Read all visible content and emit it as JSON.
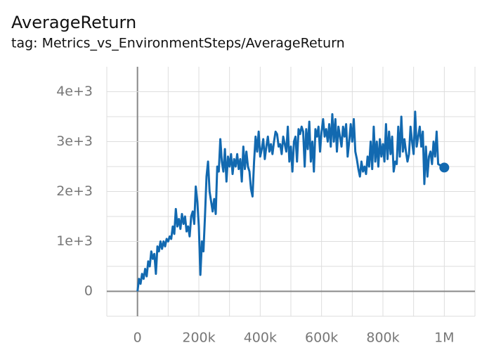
{
  "chart_data": {
    "type": "line",
    "title": "AverageReturn",
    "subtitle": "tag: Metrics_vs_EnvironmentSteps/AverageReturn",
    "color": "#1269b0",
    "grid": true,
    "xlim": [
      -100000,
      1100000
    ],
    "ylim": [
      -500,
      4500
    ],
    "xticks": [
      0,
      {
        "value": 200000,
        "label": "200k"
      },
      {
        "value": 400000,
        "label": "400k"
      },
      {
        "value": 600000,
        "label": "600k"
      },
      {
        "value": 800000,
        "label": "800k"
      },
      {
        "value": 1000000,
        "label": "1M"
      }
    ],
    "yticks": [
      0,
      {
        "value": 1000,
        "label": "1e+3"
      },
      {
        "value": 2000,
        "label": "2e+3"
      },
      {
        "value": 3000,
        "label": "3e+3"
      },
      {
        "value": 4000,
        "label": "4e+3"
      }
    ],
    "xminorticks": [
      -100000,
      100000,
      300000,
      500000,
      700000,
      900000,
      1100000
    ],
    "yminorticks": [
      -500,
      500,
      1500,
      2500,
      3500
    ],
    "x": [
      0,
      5000,
      10000,
      15000,
      20000,
      25000,
      30000,
      35000,
      40000,
      45000,
      50000,
      55000,
      60000,
      65000,
      70000,
      75000,
      80000,
      85000,
      90000,
      95000,
      100000,
      105000,
      110000,
      115000,
      120000,
      125000,
      130000,
      135000,
      140000,
      145000,
      150000,
      155000,
      160000,
      165000,
      170000,
      175000,
      180000,
      185000,
      190000,
      195000,
      200000,
      205000,
      210000,
      215000,
      220000,
      225000,
      230000,
      235000,
      240000,
      245000,
      250000,
      255000,
      260000,
      265000,
      270000,
      275000,
      280000,
      285000,
      290000,
      295000,
      300000,
      305000,
      310000,
      315000,
      320000,
      325000,
      330000,
      335000,
      340000,
      345000,
      350000,
      355000,
      360000,
      365000,
      370000,
      375000,
      380000,
      385000,
      390000,
      395000,
      400000,
      405000,
      410000,
      415000,
      420000,
      425000,
      430000,
      435000,
      440000,
      445000,
      450000,
      455000,
      460000,
      465000,
      470000,
      475000,
      480000,
      485000,
      490000,
      495000,
      500000,
      505000,
      510000,
      515000,
      520000,
      525000,
      530000,
      535000,
      540000,
      545000,
      550000,
      555000,
      560000,
      565000,
      570000,
      575000,
      580000,
      585000,
      590000,
      595000,
      600000,
      605000,
      610000,
      615000,
      620000,
      625000,
      630000,
      635000,
      640000,
      645000,
      650000,
      655000,
      660000,
      665000,
      670000,
      675000,
      680000,
      685000,
      690000,
      695000,
      700000,
      705000,
      710000,
      715000,
      720000,
      725000,
      730000,
      735000,
      740000,
      745000,
      750000,
      755000,
      760000,
      765000,
      770000,
      775000,
      780000,
      785000,
      790000,
      795000,
      800000,
      805000,
      810000,
      815000,
      820000,
      825000,
      830000,
      835000,
      840000,
      845000,
      850000,
      855000,
      860000,
      865000,
      870000,
      875000,
      880000,
      885000,
      890000,
      895000,
      900000,
      905000,
      910000,
      915000,
      920000,
      925000,
      930000,
      935000,
      940000,
      945000,
      950000,
      955000,
      960000,
      965000,
      970000,
      975000,
      980000,
      1000000
    ],
    "values": [
      0,
      250,
      150,
      350,
      250,
      450,
      300,
      600,
      500,
      800,
      650,
      750,
      350,
      900,
      800,
      1000,
      850,
      1000,
      900,
      1050,
      1000,
      1100,
      1050,
      1300,
      1150,
      1650,
      1300,
      1450,
      1250,
      1550,
      1350,
      1500,
      1200,
      1300,
      1100,
      1500,
      1600,
      1350,
      2100,
      1800,
      1300,
      330,
      1000,
      800,
      1500,
      2300,
      2600,
      2000,
      1800,
      1600,
      1850,
      1550,
      2500,
      2400,
      3050,
      2600,
      2400,
      2850,
      2200,
      2700,
      2500,
      2750,
      2350,
      2650,
      2500,
      2750,
      2450,
      2650,
      2200,
      2900,
      2450,
      2800,
      2500,
      2400,
      2050,
      1900,
      2600,
      3100,
      2800,
      3200,
      2700,
      2850,
      3050,
      2650,
      2900,
      3100,
      2800,
      2950,
      2750,
      3000,
      3200,
      3150,
      2900,
      2950,
      2750,
      3100,
      2950,
      2800,
      3300,
      2600,
      2900,
      2400,
      3000,
      3100,
      2600,
      3250,
      3150,
      3300,
      3200,
      2500,
      3250,
      2850,
      3400,
      2600,
      3000,
      2400,
      3250,
      3100,
      3300,
      2800,
      3200,
      3450,
      3100,
      3250,
      3000,
      3350,
      2900,
      3550,
      3000,
      3450,
      2800,
      3300,
      3100,
      2900,
      3300,
      3100,
      3350,
      2700,
      3000,
      3350,
      3000,
      3450,
      2800,
      2650,
      2450,
      2300,
      2600,
      2400,
      2500,
      2350,
      2700,
      2500,
      3000,
      2450,
      3300,
      2600,
      3000,
      2500,
      3050,
      2700,
      2950,
      2600,
      3350,
      2650,
      3200,
      2750,
      3100,
      2400,
      2600,
      2550,
      3300,
      2700,
      3500,
      2800,
      3050,
      2800,
      2600,
      2750,
      3300,
      3000,
      2750,
      3600,
      2900,
      3100,
      3300,
      2900,
      3200,
      2150,
      2900,
      2300,
      2700,
      2800,
      2550,
      3000,
      2700,
      3200,
      2550,
      2480
    ]
  }
}
